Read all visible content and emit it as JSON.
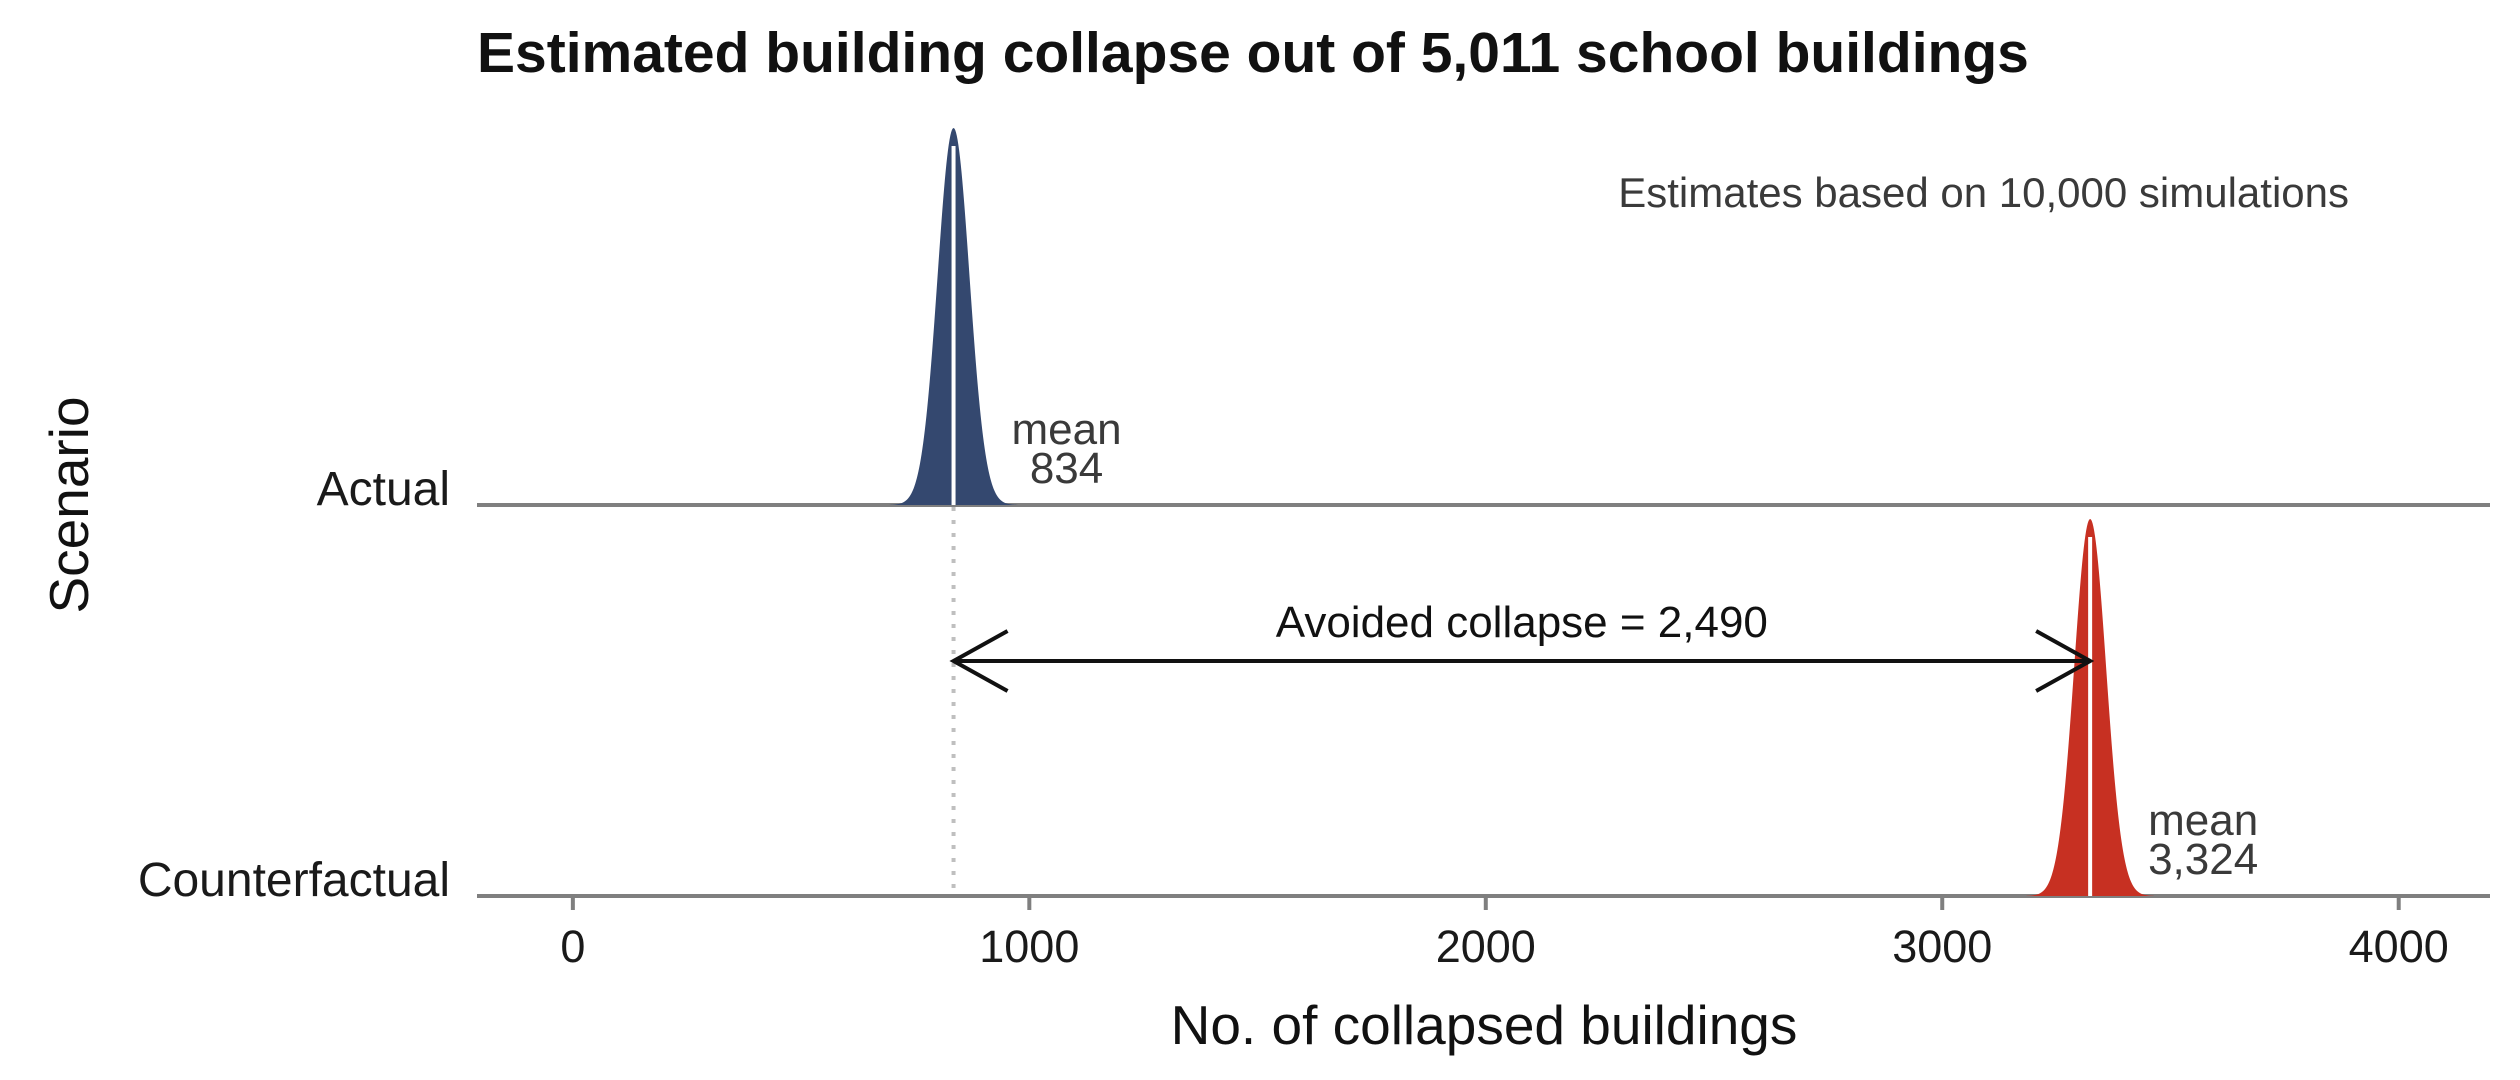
{
  "chart_data": {
    "type": "area",
    "title": "Estimated building collapse out of 5,011 school buildings",
    "annotation": "Estimates based on 10,000 simulations",
    "xlabel": "No. of collapsed buildings",
    "ylabel": "Scenario",
    "xlim": [
      -210,
      4200
    ],
    "x_ticks": [
      0,
      1000,
      2000,
      3000,
      4000
    ],
    "x_tick_labels": [
      "0",
      "1000",
      "2000",
      "3000",
      "4000"
    ],
    "grid": false,
    "series": [
      {
        "name": "Actual",
        "mean": 834,
        "mean_label": "mean",
        "mean_value_label": "834",
        "sd": 35,
        "color": "#34486f"
      },
      {
        "name": "Counterfactual",
        "mean": 3324,
        "mean_label": "mean",
        "mean_value_label": "3,324",
        "sd": 35,
        "color": "#c73022"
      }
    ],
    "difference": {
      "label": "Avoided collapse = 2,490",
      "from": 834,
      "to": 3324,
      "value": 2490
    }
  }
}
